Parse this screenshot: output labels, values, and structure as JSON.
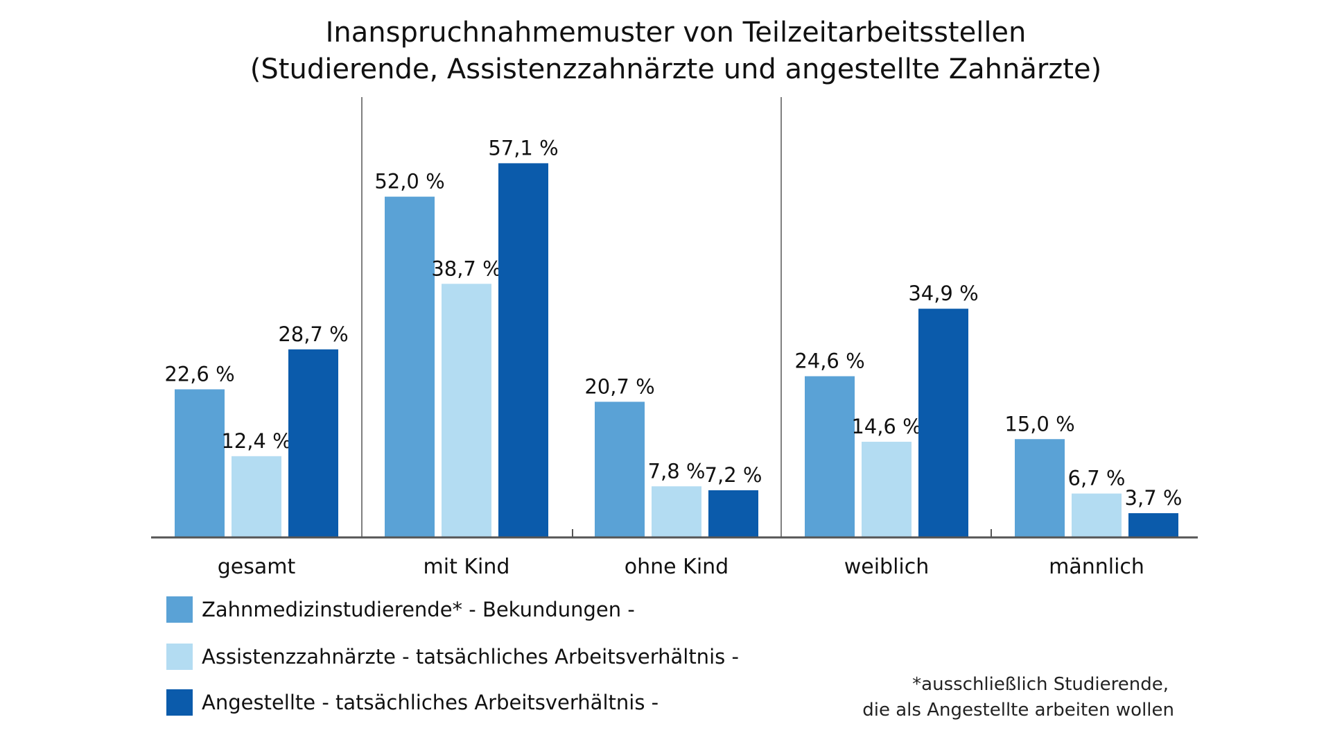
{
  "chart_data": {
    "type": "bar",
    "title": "Inanspruchnahmemuster von Teilzeitarbeitsstellen",
    "subtitle": "(Studierende, Assistenzzahnärzte und angestellte Zahnärzte)",
    "categories": [
      "gesamt",
      "mit Kind",
      "ohne Kind",
      "weiblich",
      "männlich"
    ],
    "series": [
      {
        "name": "Zahnmedizinstudierende* - Bekundungen -",
        "color": "#5aa2d6",
        "values": [
          22.6,
          52.0,
          20.7,
          24.6,
          15.0
        ],
        "labels": [
          "22,6 %",
          "52,0 %",
          "20,7 %",
          "24,6 %",
          "15,0 %"
        ]
      },
      {
        "name": "Assistenzzahnärzte - tatsächliches Arbeitsverhältnis -",
        "color": "#b3dcf2",
        "values": [
          12.4,
          38.7,
          7.8,
          14.6,
          6.7
        ],
        "labels": [
          "12,4 %",
          "38,7 %",
          "7,8 %",
          "14,6 %",
          "6,7 %"
        ]
      },
      {
        "name": "Angestellte - tatsächliches Arbeitsverhältnis -",
        "color": "#0b5bab",
        "values": [
          28.7,
          57.1,
          7.2,
          34.9,
          3.7
        ],
        "labels": [
          "28,7 %",
          "57,1 %",
          "7,2 %",
          "34,9 %",
          "3,7 %"
        ]
      }
    ],
    "ylim": [
      0,
      60
    ],
    "grid": false,
    "legend_position": "bottom-left",
    "footnote": [
      "*ausschließlich Studierende,",
      "die als Angestellte arbeiten wollen"
    ]
  }
}
